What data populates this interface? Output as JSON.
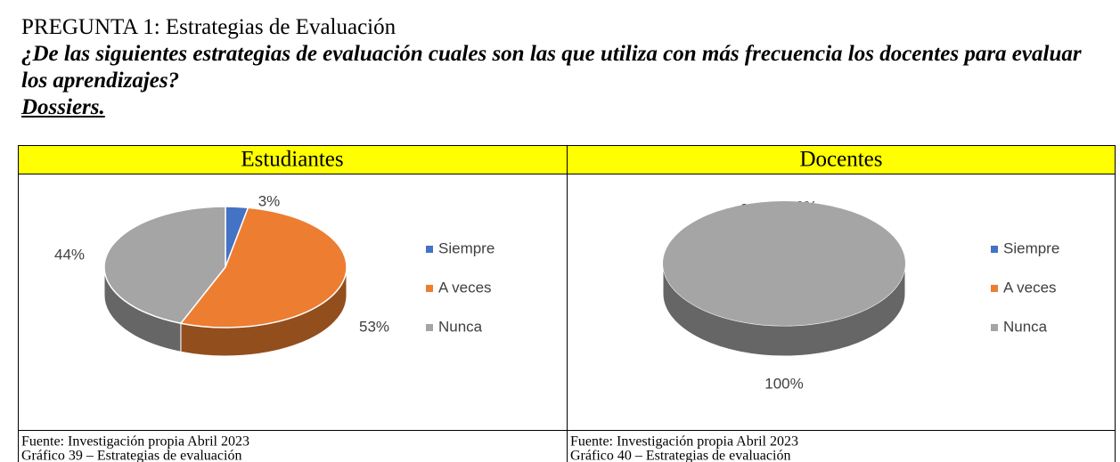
{
  "header": {
    "title": "PREGUNTA 1: Estrategias de Evaluación",
    "question": "¿De las siguientes estrategias de evaluación cuales son las que utiliza con más frecuencia los docentes para evaluar los aprendizajes?",
    "item": "Dossiers."
  },
  "chart_data": [
    {
      "type": "pie",
      "title": "Estudiantes",
      "categories": [
        "Siempre",
        "A veces",
        "Nunca"
      ],
      "values": [
        3,
        53,
        44
      ],
      "value_labels": [
        "3%",
        "53%",
        "44%"
      ],
      "colors": [
        "#4472c4",
        "#ed7d31",
        "#a5a5a5"
      ],
      "legend": "right",
      "source": "Fuente: Investigación propia Abril 2023",
      "caption": "Gráfico 39 – Estrategias de evaluación"
    },
    {
      "type": "pie",
      "title": "Docentes",
      "categories": [
        "Siempre",
        "A veces",
        "Nunca"
      ],
      "values": [
        0,
        0,
        100
      ],
      "value_labels": [
        "0%",
        "0%",
        "100%"
      ],
      "colors": [
        "#4472c4",
        "#ed7d31",
        "#a5a5a5"
      ],
      "legend": "right",
      "source": "Fuente: Investigación propia Abril 2023",
      "caption": "Gráfico 40 – Estrategias de evaluación"
    }
  ]
}
